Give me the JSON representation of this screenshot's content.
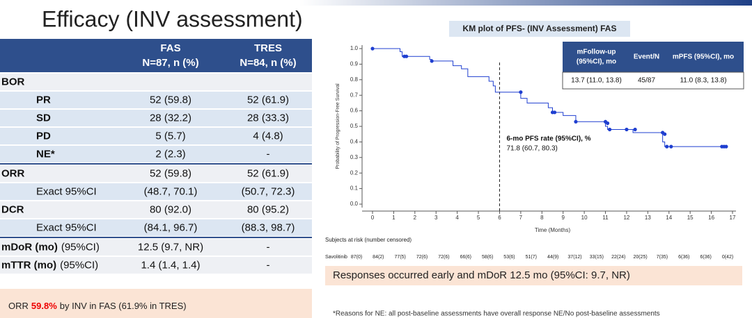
{
  "header": {
    "title": "Efficacy (INV assessment)"
  },
  "table": {
    "columns": [
      {
        "name": "FAS",
        "sub": "N=87, n (%)"
      },
      {
        "name": "TRES",
        "sub": "N=84, n (%)"
      }
    ],
    "rows": [
      {
        "label": "BOR"
      },
      {
        "label": "PR",
        "cells": [
          "52 (59.8)",
          "52 (61.9)"
        ]
      },
      {
        "label": "SD",
        "cells": [
          "28 (32.2)",
          "28 (33.3)"
        ]
      },
      {
        "label": "PD",
        "cells": [
          "5 (5.7)",
          "4 (4.8)"
        ]
      },
      {
        "label": "NE*",
        "cells": [
          "2 (2.3)",
          "-"
        ]
      },
      {
        "label": "ORR",
        "cells": [
          "52 (59.8)",
          "52 (61.9)"
        ]
      },
      {
        "label": "Exact 95%CI",
        "cells": [
          "(48.7, 70.1)",
          "(50.7, 72.3)"
        ]
      },
      {
        "label": "DCR",
        "cells": [
          "80 (92.0)",
          "80 (95.2)"
        ]
      },
      {
        "label": "Exact 95%CI",
        "cells": [
          "(84.1, 96.7)",
          "(88.3, 98.7)"
        ]
      },
      {
        "label": "mDoR (mo)",
        "note": "(95%CI)",
        "cells": [
          "12.5 (9.7, NR)",
          "-"
        ]
      },
      {
        "label": "mTTR (mo)",
        "note": "(95%CI)",
        "cells": [
          "1.4 (1.4, 1.4)",
          "-"
        ]
      }
    ]
  },
  "summary": {
    "parts": [
      "ORR",
      "59.8%",
      "by INV in FAS (61.9% in TRES)"
    ]
  },
  "chart_data": {
    "type": "line",
    "title": "KM plot of PFS- (INV Assessment) FAS",
    "x_label": "Time (Months)",
    "y_label": "Probability of Progression-Free Survival",
    "xlim": [
      0,
      17
    ],
    "ylim": [
      0,
      1.0
    ],
    "xticks": [
      0,
      1,
      2,
      3,
      4,
      5,
      6,
      7,
      8,
      9,
      10,
      11,
      12,
      13,
      14,
      15,
      16,
      17
    ],
    "yticks": [
      {
        "value": 0,
        "label": "0.0"
      },
      0.1,
      0.2,
      0.3,
      0.4,
      0.5,
      0.6,
      0.7,
      0.8,
      0.9,
      {
        "value": 1,
        "label": "1.0"
      }
    ],
    "color": "#1f3fd0",
    "x": [
      0,
      1.3,
      1.3,
      1.4,
      1.4,
      2.7,
      2.7,
      2.8,
      2.8,
      3.8,
      3.8,
      4.2,
      4.2,
      4.5,
      4.5,
      5.5,
      5.5,
      5.7,
      5.7,
      5.8,
      5.8,
      7.0,
      7.0,
      7.3,
      7.3,
      8.3,
      8.3,
      8.5,
      8.5,
      9.0,
      9.0,
      9.6,
      9.6,
      11.0,
      11.0,
      11.1,
      11.1,
      12.3,
      12.3,
      13.7,
      13.7,
      13.8,
      13.8,
      16.6
    ],
    "y": [
      1.0,
      1.0,
      0.98,
      0.98,
      0.95,
      0.95,
      0.93,
      0.93,
      0.92,
      0.92,
      0.89,
      0.89,
      0.87,
      0.87,
      0.82,
      0.82,
      0.79,
      0.79,
      0.76,
      0.76,
      0.72,
      0.72,
      0.68,
      0.68,
      0.65,
      0.65,
      0.62,
      0.62,
      0.59,
      0.59,
      0.57,
      0.57,
      0.53,
      0.53,
      0.5,
      0.5,
      0.48,
      0.48,
      0.46,
      0.46,
      0.4,
      0.4,
      0.37,
      0.37
    ],
    "censored_x": [
      0,
      1.5,
      1.6,
      2.8,
      7.0,
      8.5,
      8.6,
      9.6,
      11.0,
      11.1,
      11.2,
      12.0,
      12.4,
      13.7,
      13.8,
      13.9,
      14.1,
      16.5,
      16.6,
      16.7
    ],
    "censored_y": [
      1.0,
      0.95,
      0.95,
      0.92,
      0.72,
      0.59,
      0.59,
      0.53,
      0.53,
      0.52,
      0.48,
      0.48,
      0.48,
      0.46,
      0.45,
      0.37,
      0.37,
      0.37,
      0.37,
      0.37
    ],
    "reference_x": 6,
    "annotation": {
      "title": "6-mo PFS rate (95%CI), %",
      "value": "71.8 (60.7, 80.3)"
    },
    "inset": {
      "columns": [
        [
          "mFollow-up",
          "(95%CI), mo"
        ],
        [
          "Event/N"
        ],
        [
          "mPFS (95%CI), mo"
        ]
      ],
      "row": [
        "13.7 (11.0, 13.8)",
        "45/87",
        "11.0 (8.3, 13.8)"
      ]
    },
    "risk": {
      "title": "Subjects at risk (number censored)",
      "group": "Savolitinib",
      "counts": [
        "87(0)",
        "84(2)",
        "77(5)",
        "72(6)",
        "72(6)",
        "66(6)",
        "58(6)",
        "53(6)",
        "51(7)",
        "44(9)",
        "37(12)",
        "33(15)",
        "22(24)",
        "20(25)",
        "7(35)",
        "6(36)",
        "6(36)",
        "0(42)"
      ]
    }
  },
  "callout": "Responses occurred early and mDoR 12.5 mo (95%CI: 9.7, NR)",
  "footnote": "*Reasons for NE: all post-baseline assessments have overall response NE/No post-baseline assessments"
}
